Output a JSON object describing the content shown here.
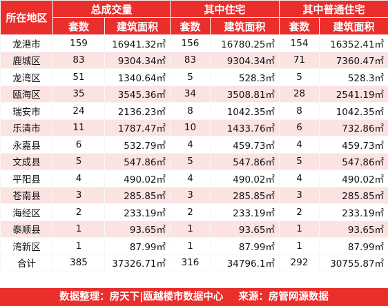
{
  "header": {
    "region_label": "所在地区",
    "groups": [
      "总成交量",
      "其中住宅",
      "其中普通住宅"
    ],
    "sub_units": "套数",
    "sub_area": "建筑面积"
  },
  "rows": [
    {
      "name": "龙港市",
      "t1": "159",
      "a1": "16941.32㎡",
      "t2": "156",
      "a2": "16780.25㎡",
      "t3": "154",
      "a3": "16352.41㎡"
    },
    {
      "name": "鹿城区",
      "t1": "83",
      "a1": "9304.34㎡",
      "t2": "83",
      "a2": "9304.34㎡",
      "t3": "71",
      "a3": "7360.47㎡"
    },
    {
      "name": "龙湾区",
      "t1": "51",
      "a1": "1340.64㎡",
      "t2": "5",
      "a2": "528.3㎡",
      "t3": "5",
      "a3": "528.3㎡"
    },
    {
      "name": "瓯海区",
      "t1": "35",
      "a1": "3545.36㎡",
      "t2": "34",
      "a2": "3508.81㎡",
      "t3": "28",
      "a3": "2541.19㎡"
    },
    {
      "name": "瑞安市",
      "t1": "24",
      "a1": "2136.23㎡",
      "t2": "8",
      "a2": "1042.35㎡",
      "t3": "8",
      "a3": "1042.35㎡"
    },
    {
      "name": "乐清市",
      "t1": "11",
      "a1": "1787.47㎡",
      "t2": "10",
      "a2": "1433.76㎡",
      "t3": "6",
      "a3": "732.86㎡"
    },
    {
      "name": "永嘉县",
      "t1": "6",
      "a1": "532.79㎡",
      "t2": "4",
      "a2": "459.73㎡",
      "t3": "4",
      "a3": "459.73㎡"
    },
    {
      "name": "文成县",
      "t1": "5",
      "a1": "547.86㎡",
      "t2": "5",
      "a2": "547.86㎡",
      "t3": "5",
      "a3": "547.86㎡"
    },
    {
      "name": "平阳县",
      "t1": "4",
      "a1": "490.02㎡",
      "t2": "4",
      "a2": "490.02㎡",
      "t3": "4",
      "a3": "490.02㎡"
    },
    {
      "name": "苍南县",
      "t1": "3",
      "a1": "285.85㎡",
      "t2": "3",
      "a2": "285.85㎡",
      "t3": "3",
      "a3": "285.85㎡"
    },
    {
      "name": "海经区",
      "t1": "2",
      "a1": "233.19㎡",
      "t2": "2",
      "a2": "233.19㎡",
      "t3": "2",
      "a3": "233.19㎡"
    },
    {
      "name": "泰顺县",
      "t1": "1",
      "a1": "93.65㎡",
      "t2": "1",
      "a2": "93.65㎡",
      "t3": "1",
      "a3": "93.65㎡"
    },
    {
      "name": "湾新区",
      "t1": "1",
      "a1": "87.99㎡",
      "t2": "1",
      "a2": "87.99㎡",
      "t3": "1",
      "a3": "87.99㎡"
    }
  ],
  "total": {
    "name": "合计",
    "t1": "385",
    "a1": "37326.71㎡",
    "t2": "316",
    "a2": "34796.1㎡",
    "t3": "292",
    "a3": "30755.87㎡"
  },
  "footer": {
    "left": "数据整理：房天下|瓯越楼市数据中心",
    "right": "来源：房管网源数据"
  },
  "colors": {
    "header_bg": "#ea2e2c",
    "stripe_bg": "#fbe3e2"
  }
}
